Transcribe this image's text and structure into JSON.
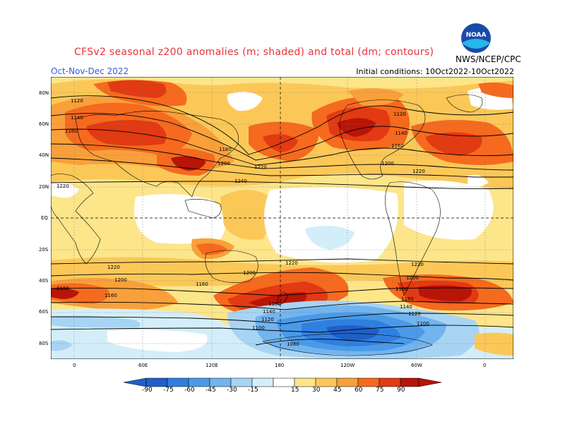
{
  "header": {
    "title": "CFSv2 seasonal z200 anomalies (m; shaded) and total (dm; contours)",
    "period": "Oct-Nov-Dec 2022",
    "initial_conditions": "Initial conditions: 10Oct2022-10Oct2022",
    "agency": "NWS/NCEP/CPC",
    "logo_text": "NOAA"
  },
  "map": {
    "lat_labels": [
      "80N",
      "60N",
      "40N",
      "20N",
      "EQ",
      "20S",
      "40S",
      "60S",
      "80S"
    ],
    "lon_labels": [
      "0",
      "60E",
      "120E",
      "180",
      "120W",
      "60W",
      "0"
    ],
    "contour_labels": [
      "1120",
      "1140",
      "1160",
      "1180",
      "1200",
      "1220",
      "1240",
      "1100",
      "1080"
    ],
    "colors": {
      "neg90": "#1f5fc8",
      "neg75": "#2f7fe0",
      "neg60": "#4a9ae8",
      "neg45": "#72b4ee",
      "neg30": "#a8d4f4",
      "neg15": "#d4eef9",
      "zero": "#ffffff",
      "pos15": "#fde58a",
      "pos30": "#fbc858",
      "pos45": "#f9a03a",
      "pos60": "#f56a1e",
      "pos75": "#e23a12",
      "pos90": "#b81408"
    }
  },
  "colorbar": {
    "ticks": [
      "-90",
      "-75",
      "-60",
      "-45",
      "-30",
      "-15",
      "15",
      "30",
      "45",
      "60",
      "75",
      "90"
    ]
  }
}
